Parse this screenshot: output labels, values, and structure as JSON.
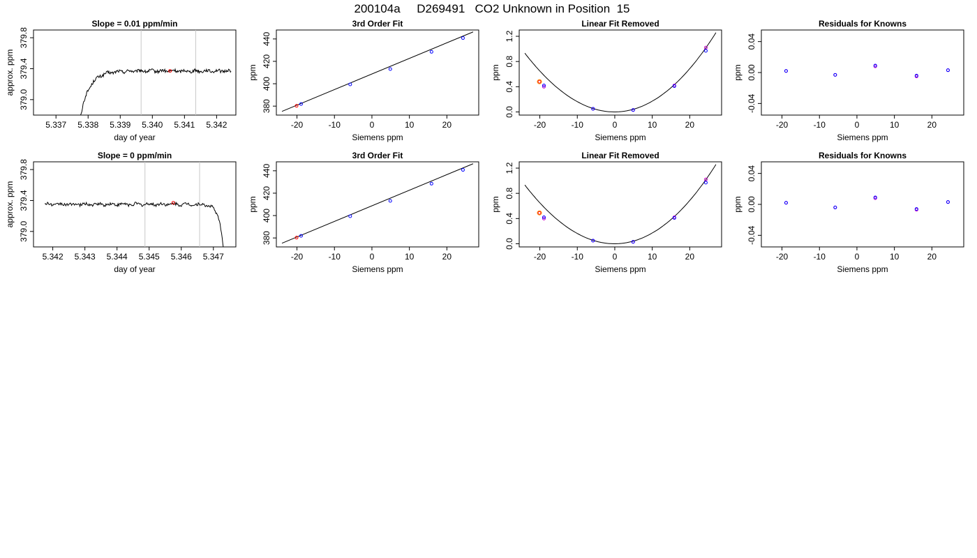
{
  "figure": {
    "title": "200104a     D269491   CO2 Unknown in Position  15"
  },
  "colors": {
    "trace": "#000000",
    "fit_line": "#000000",
    "window_line": "#c8c8c8",
    "known_fit": "#0000ff",
    "known_measured": "#cc00cc",
    "unknown": "#ff0000",
    "unknown_alt": "#ff8c00"
  },
  "chart_data": [
    {
      "type": "line",
      "panel": "row1-col1",
      "title": "Slope =  0.01  ppm/min",
      "xlabel": "day of year",
      "ylabel": "approx. ppm",
      "xlim": [
        5.3363,
        5.3426
      ],
      "ylim": [
        378.8,
        379.9
      ],
      "xticks": [
        5.337,
        5.338,
        5.339,
        5.34,
        5.341,
        5.342
      ],
      "xtick_labels": [
        "5.337",
        "5.338",
        "5.339",
        "5.340",
        "5.341",
        "5.342"
      ],
      "yticks": [
        379.0,
        379.4,
        379.8
      ],
      "ytick_labels": [
        "379.0",
        "379.4",
        "379.8"
      ],
      "window": [
        5.33965,
        5.34135
      ],
      "trace_start": 5.33748,
      "trace_end": 5.34245,
      "plateau": 379.37,
      "transient": "start",
      "marker": {
        "x": 5.34055,
        "y": 379.37
      }
    },
    {
      "type": "scatter",
      "panel": "row1-col2",
      "title": "3rd Order Fit",
      "xlabel": "Siemens ppm",
      "ylabel": "ppm",
      "xlim": [
        -25.5,
        28.5
      ],
      "ylim": [
        372,
        448
      ],
      "xticks": [
        -20,
        -10,
        0,
        10,
        20
      ],
      "xtick_labels": [
        "-20",
        "-10",
        "0",
        "10",
        "20"
      ],
      "yticks": [
        380,
        400,
        420,
        440
      ],
      "ytick_labels": [
        "380",
        "400",
        "420",
        "440"
      ],
      "line": {
        "x": [
          -24,
          27
        ],
        "y": [
          375.3,
          446.3
        ]
      },
      "knowns": {
        "x": [
          -18.9,
          -5.8,
          4.9,
          15.9,
          24.3
        ],
        "y": [
          381.9,
          399.4,
          413.1,
          428.5,
          440.8
        ]
      },
      "unknown": {
        "x": [
          -20.1
        ],
        "y": [
          380.3
        ]
      }
    },
    {
      "type": "scatter",
      "panel": "row1-col3",
      "title": "Linear Fit Removed",
      "xlabel": "Siemens ppm",
      "ylabel": "ppm",
      "xlim": [
        -25.5,
        28.5
      ],
      "ylim": [
        -0.05,
        1.3
      ],
      "xticks": [
        -20,
        -10,
        0,
        10,
        20
      ],
      "xtick_labels": [
        "-20",
        "-10",
        "0",
        "10",
        "20"
      ],
      "yticks": [
        0.0,
        0.4,
        0.8,
        1.2
      ],
      "ytick_labels": [
        "0.0",
        "0.4",
        "0.8",
        "1.2"
      ],
      "curve": {
        "a": 0.00167,
        "c": 0.0002,
        "d": 1.8e-06,
        "x_from": -24,
        "x_to": 27
      },
      "knowns": {
        "x": [
          -18.9,
          -5.8,
          4.9,
          15.9,
          24.3
        ],
        "y": [
          0.42,
          0.05,
          0.03,
          0.41,
          0.97
        ]
      },
      "knowns_measured": {
        "x": [
          -18.9,
          -5.8,
          4.9,
          15.9,
          24.3
        ],
        "y": [
          0.4,
          0.05,
          0.03,
          0.42,
          1.02
        ]
      },
      "unknown": {
        "x": [
          -20.1
        ],
        "y": [
          0.48
        ]
      }
    },
    {
      "type": "scatter",
      "panel": "row1-col4",
      "title": "Residuals for Knowns",
      "xlabel": "Siemens ppm",
      "ylabel": "ppm",
      "xlim": [
        -25.5,
        28.5
      ],
      "ylim": [
        -0.055,
        0.055
      ],
      "xticks": [
        -20,
        -10,
        0,
        10,
        20
      ],
      "xtick_labels": [
        "-20",
        "-10",
        "0",
        "10",
        "20"
      ],
      "yticks": [
        -0.04,
        0.0,
        0.04
      ],
      "ytick_labels": [
        "-0.04",
        "0.00",
        "0.04"
      ],
      "knowns": {
        "x": [
          -18.9,
          -5.8,
          4.9,
          15.9,
          24.3
        ],
        "y": [
          0.002,
          -0.003,
          0.009,
          -0.004,
          0.003
        ]
      },
      "knowns_measured": {
        "x": [
          -18.9,
          -5.8,
          4.9,
          15.9,
          24.3
        ],
        "y": [
          0.002,
          -0.003,
          0.008,
          -0.005,
          0.003
        ]
      }
    },
    {
      "type": "line",
      "panel": "row2-col1",
      "title": "Slope =  0  ppm/min",
      "xlabel": "day of year",
      "ylabel": "approx. ppm",
      "xlim": [
        5.3414,
        5.3477
      ],
      "ylim": [
        378.8,
        379.9
      ],
      "xticks": [
        5.342,
        5.343,
        5.344,
        5.345,
        5.346,
        5.347
      ],
      "xtick_labels": [
        "5.342",
        "5.343",
        "5.344",
        "5.345",
        "5.346",
        "5.347"
      ],
      "yticks": [
        379.0,
        379.4,
        379.8
      ],
      "ytick_labels": [
        "379.0",
        "379.4",
        "379.8"
      ],
      "window": [
        5.34487,
        5.34657
      ],
      "trace_start": 5.34175,
      "trace_end": 5.34745,
      "plateau": 379.35,
      "transient": "end",
      "marker": {
        "x": 5.34575,
        "y": 379.37
      }
    },
    {
      "type": "scatter",
      "panel": "row2-col2",
      "title": "3rd Order Fit",
      "xlabel": "Siemens ppm",
      "ylabel": "ppm",
      "xlim": [
        -25.5,
        28.5
      ],
      "ylim": [
        372,
        448
      ],
      "xticks": [
        -20,
        -10,
        0,
        10,
        20
      ],
      "xtick_labels": [
        "-20",
        "-10",
        "0",
        "10",
        "20"
      ],
      "yticks": [
        380,
        400,
        420,
        440
      ],
      "ytick_labels": [
        "380",
        "400",
        "420",
        "440"
      ],
      "line": {
        "x": [
          -24,
          27
        ],
        "y": [
          375.3,
          446.3
        ]
      },
      "knowns": {
        "x": [
          -18.9,
          -5.8,
          4.9,
          15.9,
          24.3
        ],
        "y": [
          381.9,
          399.4,
          413.1,
          428.5,
          440.8
        ]
      },
      "unknown": {
        "x": [
          -20.1
        ],
        "y": [
          380.3
        ]
      }
    },
    {
      "type": "scatter",
      "panel": "row2-col3",
      "title": "Linear Fit Removed",
      "xlabel": "Siemens ppm",
      "ylabel": "ppm",
      "xlim": [
        -25.5,
        28.5
      ],
      "ylim": [
        -0.05,
        1.3
      ],
      "xticks": [
        -20,
        -10,
        0,
        10,
        20
      ],
      "xtick_labels": [
        "-20",
        "-10",
        "0",
        "10",
        "20"
      ],
      "yticks": [
        0.0,
        0.4,
        0.8,
        1.2
      ],
      "ytick_labels": [
        "0.0",
        "0.4",
        "0.8",
        "1.2"
      ],
      "curve": {
        "a": 0.00167,
        "c": 0.0002,
        "d": 1.8e-06,
        "x_from": -24,
        "x_to": 27
      },
      "knowns": {
        "x": [
          -18.9,
          -5.8,
          4.9,
          15.9,
          24.3
        ],
        "y": [
          0.42,
          0.05,
          0.03,
          0.41,
          0.97
        ]
      },
      "knowns_measured": {
        "x": [
          -18.9,
          -5.8,
          4.9,
          15.9,
          24.3
        ],
        "y": [
          0.4,
          0.05,
          0.03,
          0.42,
          1.02
        ]
      },
      "unknown": {
        "x": [
          -20.1
        ],
        "y": [
          0.49
        ]
      }
    },
    {
      "type": "scatter",
      "panel": "row2-col4",
      "title": "Residuals for Knowns",
      "xlabel": "Siemens ppm",
      "ylabel": "ppm",
      "xlim": [
        -25.5,
        28.5
      ],
      "ylim": [
        -0.055,
        0.055
      ],
      "xticks": [
        -20,
        -10,
        0,
        10,
        20
      ],
      "xtick_labels": [
        "-20",
        "-10",
        "0",
        "10",
        "20"
      ],
      "yticks": [
        -0.04,
        0.0,
        0.04
      ],
      "ytick_labels": [
        "-0.04",
        "0.00",
        "0.04"
      ],
      "knowns": {
        "x": [
          -18.9,
          -5.8,
          4.9,
          15.9,
          24.3
        ],
        "y": [
          0.002,
          -0.004,
          0.009,
          -0.006,
          0.003
        ]
      },
      "knowns_measured": {
        "x": [
          -18.9,
          -5.8,
          4.9,
          15.9,
          24.3
        ],
        "y": [
          0.002,
          -0.004,
          0.008,
          -0.007,
          0.003
        ]
      }
    }
  ]
}
